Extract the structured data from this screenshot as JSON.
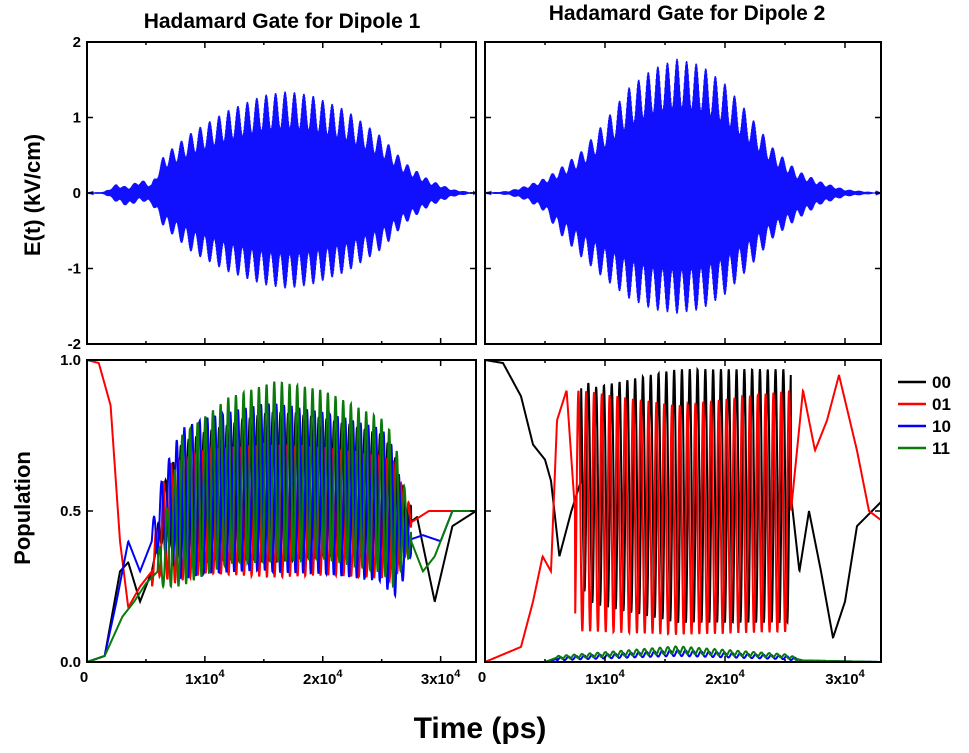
{
  "chart_data": [
    {
      "id": "field-dipole-1",
      "type": "line",
      "title": "Hadamard Gate for Dipole 1",
      "ylabel": "E(t) (kV/cm)",
      "xlabel": "",
      "xlim": [
        0,
        33000
      ],
      "ylim": [
        -2,
        2
      ],
      "yticks": [
        "-2",
        "-1",
        "0",
        "1",
        "2"
      ],
      "color": "#1010ff",
      "series": [
        {
          "name": "",
          "envelope_max": [
            [
              0,
              0
            ],
            [
              1500,
              0.02
            ],
            [
              2500,
              0.12
            ],
            [
              3500,
              0.08
            ],
            [
              4500,
              0.18
            ],
            [
              5500,
              0.12
            ],
            [
              6500,
              0.5
            ],
            [
              9000,
              0.82
            ],
            [
              12000,
              1.1
            ],
            [
              15000,
              1.3
            ],
            [
              17000,
              1.35
            ],
            [
              19000,
              1.3
            ],
            [
              22000,
              1.1
            ],
            [
              25000,
              0.75
            ],
            [
              27000,
              0.4
            ],
            [
              29000,
              0.18
            ],
            [
              31000,
              0.05
            ],
            [
              33000,
              0
            ]
          ],
          "envelope_min": [
            [
              0,
              0
            ],
            [
              1500,
              -0.02
            ],
            [
              2500,
              -0.12
            ],
            [
              3500,
              -0.18
            ],
            [
              4500,
              -0.1
            ],
            [
              5500,
              -0.15
            ],
            [
              6500,
              -0.45
            ],
            [
              9000,
              -0.8
            ],
            [
              12000,
              -1.05
            ],
            [
              15000,
              -1.22
            ],
            [
              17000,
              -1.27
            ],
            [
              19000,
              -1.22
            ],
            [
              22000,
              -1.05
            ],
            [
              25000,
              -0.75
            ],
            [
              27000,
              -0.4
            ],
            [
              29000,
              -0.18
            ],
            [
              31000,
              -0.05
            ],
            [
              33000,
              0
            ]
          ]
        }
      ]
    },
    {
      "id": "field-dipole-2",
      "type": "line",
      "title": "Hadamard Gate for Dipole 2",
      "ylabel": "",
      "xlabel": "",
      "xlim": [
        0,
        33000
      ],
      "ylim": [
        -2,
        2
      ],
      "color": "#1010ff",
      "series": [
        {
          "name": "",
          "envelope_max": [
            [
              0,
              0
            ],
            [
              2000,
              0.03
            ],
            [
              3500,
              0.1
            ],
            [
              5000,
              0.2
            ],
            [
              6000,
              0.3
            ],
            [
              8000,
              0.55
            ],
            [
              10000,
              0.95
            ],
            [
              12000,
              1.4
            ],
            [
              14000,
              1.65
            ],
            [
              16000,
              1.78
            ],
            [
              18000,
              1.7
            ],
            [
              20000,
              1.45
            ],
            [
              22000,
              1.05
            ],
            [
              24000,
              0.6
            ],
            [
              26000,
              0.3
            ],
            [
              28000,
              0.15
            ],
            [
              30000,
              0.05
            ],
            [
              33000,
              0
            ]
          ],
          "envelope_min": [
            [
              0,
              0
            ],
            [
              2000,
              -0.03
            ],
            [
              3500,
              -0.1
            ],
            [
              5000,
              -0.25
            ],
            [
              6000,
              -0.5
            ],
            [
              8000,
              -0.85
            ],
            [
              10000,
              -1.15
            ],
            [
              12000,
              -1.4
            ],
            [
              14000,
              -1.55
            ],
            [
              16000,
              -1.6
            ],
            [
              18000,
              -1.55
            ],
            [
              20000,
              -1.35
            ],
            [
              22000,
              -1.0
            ],
            [
              24000,
              -0.6
            ],
            [
              26000,
              -0.35
            ],
            [
              28000,
              -0.15
            ],
            [
              30000,
              -0.05
            ],
            [
              33000,
              0
            ]
          ]
        }
      ]
    },
    {
      "id": "population-dipole-1",
      "type": "line",
      "title": "",
      "ylabel": "Population",
      "xlabel": "",
      "xlim": [
        0,
        33000
      ],
      "ylim": [
        0,
        1
      ],
      "yticks": [
        "0.0",
        "0.5",
        "1.0"
      ],
      "xticks": [
        {
          "value": 10000,
          "mant": "1x10",
          "exp": "4"
        },
        {
          "value": 20000,
          "mant": "2x10",
          "exp": "4"
        },
        {
          "value": 30000,
          "mant": "3x10",
          "exp": "4"
        }
      ],
      "origin_label": "0",
      "series": [
        {
          "name": "00",
          "color": "#000000",
          "shape": [
            [
              0,
              0
            ],
            [
              1500,
              0.02
            ],
            [
              2800,
              0.3
            ],
            [
              3500,
              0.33
            ],
            [
              4500,
              0.2
            ],
            [
              5500,
              0.3
            ],
            [
              6500,
              0.5
            ],
            [
              10000,
              0.55
            ],
            [
              15000,
              0.58
            ],
            [
              20000,
              0.58
            ],
            [
              25000,
              0.55
            ],
            [
              27000,
              0.45
            ],
            [
              28000,
              0.48
            ],
            [
              29500,
              0.2
            ],
            [
              31000,
              0.45
            ],
            [
              33000,
              0.5
            ]
          ],
          "osc": [
            [
              6000,
              0.05
            ],
            [
              8000,
              0.2
            ],
            [
              16000,
              0.25
            ],
            [
              26000,
              0.2
            ],
            [
              27500,
              0.05
            ]
          ]
        },
        {
          "name": "01",
          "color": "#ff0000",
          "shape": [
            [
              0,
              1
            ],
            [
              1000,
              0.99
            ],
            [
              2000,
              0.85
            ],
            [
              2800,
              0.4
            ],
            [
              3500,
              0.18
            ],
            [
              4500,
              0.25
            ],
            [
              5500,
              0.3
            ],
            [
              6500,
              0.45
            ],
            [
              10000,
              0.5
            ],
            [
              15000,
              0.5
            ],
            [
              20000,
              0.5
            ],
            [
              25000,
              0.48
            ],
            [
              27000,
              0.45
            ],
            [
              29000,
              0.5
            ],
            [
              33000,
              0.5
            ]
          ],
          "osc": [
            [
              5500,
              0.05
            ],
            [
              7000,
              0.2
            ],
            [
              16000,
              0.22
            ],
            [
              26000,
              0.2
            ],
            [
              27500,
              0.05
            ]
          ]
        },
        {
          "name": "10",
          "color": "#0000ff",
          "shape": [
            [
              0,
              0
            ],
            [
              1500,
              0.02
            ],
            [
              2500,
              0.2
            ],
            [
              3500,
              0.4
            ],
            [
              4500,
              0.3
            ],
            [
              5500,
              0.4
            ],
            [
              6500,
              0.5
            ],
            [
              10000,
              0.55
            ],
            [
              15000,
              0.58
            ],
            [
              20000,
              0.56
            ],
            [
              25000,
              0.52
            ],
            [
              27000,
              0.4
            ],
            [
              28500,
              0.42
            ],
            [
              30000,
              0.4
            ],
            [
              31000,
              0.5
            ],
            [
              33000,
              0.5
            ]
          ],
          "osc": [
            [
              5500,
              0.05
            ],
            [
              8000,
              0.25
            ],
            [
              16000,
              0.28
            ],
            [
              26000,
              0.25
            ],
            [
              27500,
              0.05
            ]
          ]
        },
        {
          "name": "11",
          "color": "#0a7a0a",
          "shape": [
            [
              0,
              0
            ],
            [
              1500,
              0.02
            ],
            [
              3000,
              0.15
            ],
            [
              4000,
              0.2
            ],
            [
              5000,
              0.26
            ],
            [
              6000,
              0.3
            ],
            [
              8000,
              0.5
            ],
            [
              12000,
              0.6
            ],
            [
              16000,
              0.63
            ],
            [
              20000,
              0.62
            ],
            [
              25000,
              0.55
            ],
            [
              27000,
              0.45
            ],
            [
              28500,
              0.3
            ],
            [
              29500,
              0.35
            ],
            [
              31000,
              0.5
            ],
            [
              33000,
              0.5
            ]
          ],
          "osc": [
            [
              6000,
              0.05
            ],
            [
              8000,
              0.25
            ],
            [
              16000,
              0.3
            ],
            [
              26000,
              0.25
            ],
            [
              27500,
              0.05
            ]
          ]
        }
      ]
    },
    {
      "id": "population-dipole-2",
      "type": "line",
      "title": "",
      "ylabel": "",
      "xlabel": "",
      "xlim": [
        0,
        33000
      ],
      "ylim": [
        0,
        1
      ],
      "xticks": [
        {
          "value": 10000,
          "mant": "1x10",
          "exp": "4"
        },
        {
          "value": 20000,
          "mant": "2x10",
          "exp": "4"
        },
        {
          "value": 30000,
          "mant": "3x10",
          "exp": "4"
        }
      ],
      "origin_label": "0",
      "series": [
        {
          "name": "00",
          "color": "#000000",
          "shape": [
            [
              0,
              1
            ],
            [
              1500,
              0.99
            ],
            [
              3000,
              0.88
            ],
            [
              4000,
              0.72
            ],
            [
              5000,
              0.67
            ],
            [
              5500,
              0.6
            ],
            [
              6200,
              0.35
            ],
            [
              7200,
              0.5
            ],
            [
              8000,
              0.6
            ],
            [
              9000,
              0.55
            ],
            [
              16000,
              0.55
            ],
            [
              25500,
              0.55
            ],
            [
              26200,
              0.3
            ],
            [
              27000,
              0.5
            ],
            [
              28000,
              0.3
            ],
            [
              29000,
              0.08
            ],
            [
              30000,
              0.2
            ],
            [
              31000,
              0.45
            ],
            [
              33000,
              0.53
            ]
          ],
          "osc": [
            [
              8000,
              0.35
            ],
            [
              16000,
              0.42
            ],
            [
              25500,
              0.42
            ]
          ]
        },
        {
          "name": "01",
          "color": "#ff0000",
          "shape": [
            [
              0,
              0
            ],
            [
              3000,
              0.05
            ],
            [
              4000,
              0.2
            ],
            [
              4800,
              0.35
            ],
            [
              5500,
              0.3
            ],
            [
              6000,
              0.8
            ],
            [
              6800,
              0.9
            ],
            [
              7500,
              0.5
            ],
            [
              8200,
              0.5
            ],
            [
              16000,
              0.47
            ],
            [
              25500,
              0.5
            ],
            [
              26500,
              0.9
            ],
            [
              27500,
              0.7
            ],
            [
              28500,
              0.8
            ],
            [
              29500,
              0.95
            ],
            [
              31000,
              0.7
            ],
            [
              32000,
              0.5
            ],
            [
              33000,
              0.47
            ]
          ],
          "osc": [
            [
              7500,
              0.4
            ],
            [
              16000,
              0.38
            ],
            [
              25500,
              0.4
            ]
          ]
        },
        {
          "name": "10",
          "color": "#0000ff",
          "shape": [
            [
              0,
              0
            ],
            [
              5000,
              0.0
            ],
            [
              6000,
              0.01
            ],
            [
              8000,
              0.015
            ],
            [
              16000,
              0.03
            ],
            [
              25000,
              0.015
            ],
            [
              26500,
              0.005
            ],
            [
              33000,
              0
            ]
          ],
          "osc": [
            [
              6000,
              0.005
            ],
            [
              16000,
              0.01
            ],
            [
              26000,
              0.005
            ]
          ]
        },
        {
          "name": "11",
          "color": "#0a7a0a",
          "shape": [
            [
              0,
              0
            ],
            [
              5000,
              0.0
            ],
            [
              6000,
              0.015
            ],
            [
              8000,
              0.02
            ],
            [
              16000,
              0.04
            ],
            [
              25000,
              0.02
            ],
            [
              26500,
              0.005
            ],
            [
              33000,
              0
            ]
          ],
          "osc": [
            [
              6000,
              0.005
            ],
            [
              16000,
              0.012
            ],
            [
              26000,
              0.005
            ]
          ]
        }
      ]
    }
  ],
  "shared_xlabel": "Time (ps)",
  "legend": {
    "placement": "right",
    "entries": [
      {
        "name": "00",
        "color": "#000000"
      },
      {
        "name": "01",
        "color": "#ff0000"
      },
      {
        "name": "10",
        "color": "#0000ff"
      },
      {
        "name": "11",
        "color": "#0a7a0a"
      }
    ]
  }
}
